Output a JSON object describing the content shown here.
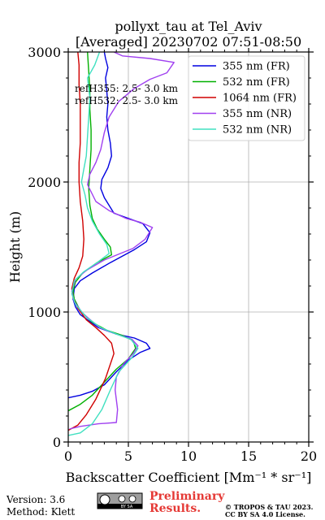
{
  "chart_data": {
    "type": "line",
    "title_line1": "pollyxt_tau at Tel_Aviv",
    "title_line2": "[Averaged] 20230702 07:51-08:50",
    "xlabel": "Backscatter Coefficient [Mm⁻¹ * sr⁻¹]",
    "ylabel": "Height (m)",
    "xlim": [
      0,
      20
    ],
    "ylim": [
      0,
      3000
    ],
    "xticks": [
      "0",
      "5",
      "10",
      "15",
      "20"
    ],
    "yticks": [
      "0",
      "1000",
      "2000",
      "3000"
    ],
    "grid": true,
    "legend_position": "top-right",
    "annotations": [
      "refH355:  2.5- 3.0 km",
      "refH532:  2.5- 3.0 km"
    ],
    "series": [
      {
        "name": "355 nm (FR)",
        "color": "#0000e0",
        "points": [
          [
            0,
            340
          ],
          [
            1,
            360
          ],
          [
            2,
            390
          ],
          [
            3,
            440
          ],
          [
            4,
            540
          ],
          [
            5,
            630
          ],
          [
            6,
            690
          ],
          [
            6.8,
            720
          ],
          [
            6.5,
            760
          ],
          [
            5.5,
            800
          ],
          [
            4,
            830
          ],
          [
            2.5,
            880
          ],
          [
            1,
            980
          ],
          [
            0.6,
            1040
          ],
          [
            0.4,
            1100
          ],
          [
            0.5,
            1180
          ],
          [
            1,
            1240
          ],
          [
            2,
            1300
          ],
          [
            3.5,
            1380
          ],
          [
            5.5,
            1480
          ],
          [
            6.5,
            1540
          ],
          [
            6.8,
            1610
          ],
          [
            6.2,
            1680
          ],
          [
            5,
            1720
          ],
          [
            3.8,
            1760
          ],
          [
            3,
            1880
          ],
          [
            2.7,
            1950
          ],
          [
            2.8,
            2020
          ],
          [
            3.3,
            2110
          ],
          [
            3.6,
            2200
          ],
          [
            3.5,
            2300
          ],
          [
            3.3,
            2400
          ],
          [
            3.2,
            2500
          ],
          [
            3.3,
            2600
          ],
          [
            3.2,
            2700
          ],
          [
            3.1,
            2800
          ],
          [
            3.3,
            2880
          ],
          [
            3.1,
            2950
          ],
          [
            3.0,
            3000
          ]
        ]
      },
      {
        "name": "532 nm (FR)",
        "color": "#00b000",
        "points": [
          [
            0,
            240
          ],
          [
            1,
            290
          ],
          [
            2,
            360
          ],
          [
            3,
            460
          ],
          [
            4,
            560
          ],
          [
            5,
            640
          ],
          [
            5.6,
            720
          ],
          [
            5.4,
            780
          ],
          [
            4.5,
            820
          ],
          [
            3.2,
            860
          ],
          [
            2,
            920
          ],
          [
            1,
            1010
          ],
          [
            0.5,
            1100
          ],
          [
            0.4,
            1160
          ],
          [
            0.6,
            1230
          ],
          [
            1.2,
            1300
          ],
          [
            2.4,
            1380
          ],
          [
            3.6,
            1440
          ],
          [
            3.5,
            1500
          ],
          [
            3,
            1560
          ],
          [
            2.4,
            1640
          ],
          [
            2,
            1720
          ],
          [
            1.8,
            1820
          ],
          [
            1.7,
            1950
          ],
          [
            1.8,
            2100
          ],
          [
            1.9,
            2250
          ],
          [
            1.9,
            2400
          ],
          [
            1.8,
            2560
          ],
          [
            1.8,
            2700
          ],
          [
            1.7,
            2850
          ],
          [
            1.6,
            3000
          ]
        ]
      },
      {
        "name": "1064 nm (FR)",
        "color": "#d00000",
        "points": [
          [
            0,
            90
          ],
          [
            0.8,
            130
          ],
          [
            1.5,
            210
          ],
          [
            2.3,
            330
          ],
          [
            3.1,
            490
          ],
          [
            3.8,
            680
          ],
          [
            3.6,
            760
          ],
          [
            3,
            820
          ],
          [
            2.3,
            880
          ],
          [
            1.5,
            940
          ],
          [
            0.8,
            1030
          ],
          [
            0.4,
            1110
          ],
          [
            0.3,
            1180
          ],
          [
            0.5,
            1260
          ],
          [
            0.9,
            1340
          ],
          [
            1.2,
            1430
          ],
          [
            1.3,
            1560
          ],
          [
            1.2,
            1700
          ],
          [
            1.0,
            1850
          ],
          [
            0.9,
            2000
          ],
          [
            0.9,
            2150
          ],
          [
            1.0,
            2300
          ],
          [
            1.0,
            2450
          ],
          [
            1.0,
            2600
          ],
          [
            0.9,
            2750
          ],
          [
            0.9,
            2900
          ],
          [
            0.8,
            3000
          ]
        ]
      },
      {
        "name": "355 nm (NR)",
        "color": "#a040f0",
        "points": [
          [
            0.1,
            100
          ],
          [
            1,
            120
          ],
          [
            2.5,
            140
          ],
          [
            4,
            150
          ],
          [
            4.1,
            250
          ],
          [
            3.9,
            400
          ],
          [
            4,
            500
          ],
          [
            4.6,
            600
          ],
          [
            5.4,
            680
          ],
          [
            5.8,
            740
          ],
          [
            5.3,
            790
          ],
          [
            4,
            830
          ],
          [
            2.6,
            880
          ],
          [
            1.2,
            990
          ],
          [
            0.5,
            1080
          ],
          [
            0.3,
            1160
          ],
          [
            0.6,
            1250
          ],
          [
            1.5,
            1320
          ],
          [
            3,
            1400
          ],
          [
            5.4,
            1490
          ],
          [
            6.4,
            1560
          ],
          [
            7.0,
            1650
          ],
          [
            6.0,
            1690
          ],
          [
            4.8,
            1720
          ],
          [
            3.4,
            1780
          ],
          [
            2.3,
            1850
          ],
          [
            1.6,
            1980
          ],
          [
            1.8,
            2060
          ],
          [
            2.3,
            2150
          ],
          [
            2.7,
            2250
          ],
          [
            3,
            2380
          ],
          [
            3.4,
            2500
          ],
          [
            4.2,
            2620
          ],
          [
            5.5,
            2720
          ],
          [
            6.8,
            2790
          ],
          [
            8.2,
            2840
          ],
          [
            8.8,
            2920
          ],
          [
            6.8,
            2950
          ],
          [
            4.5,
            2970
          ],
          [
            3.8,
            3000
          ]
        ]
      },
      {
        "name": "532 nm (NR)",
        "color": "#40e0c0",
        "points": [
          [
            0,
            50
          ],
          [
            1,
            70
          ],
          [
            2,
            140
          ],
          [
            2.8,
            250
          ],
          [
            3.5,
            400
          ],
          [
            4.2,
            540
          ],
          [
            5.3,
            650
          ],
          [
            5.8,
            720
          ],
          [
            5.2,
            790
          ],
          [
            4,
            830
          ],
          [
            2.7,
            880
          ],
          [
            1.5,
            960
          ],
          [
            0.6,
            1060
          ],
          [
            0.3,
            1140
          ],
          [
            0.5,
            1240
          ],
          [
            1.3,
            1310
          ],
          [
            2.4,
            1380
          ],
          [
            3.4,
            1450
          ],
          [
            3.2,
            1520
          ],
          [
            2.6,
            1600
          ],
          [
            2.0,
            1700
          ],
          [
            1.6,
            1800
          ],
          [
            1.4,
            1900
          ],
          [
            1.1,
            2000
          ],
          [
            1.3,
            2100
          ],
          [
            1.5,
            2200
          ],
          [
            1.6,
            2350
          ],
          [
            1.7,
            2500
          ],
          [
            1.8,
            2650
          ],
          [
            1.6,
            2800
          ],
          [
            2.2,
            2900
          ],
          [
            2.6,
            3000
          ]
        ]
      }
    ]
  },
  "footer": {
    "version": "Version: 3.6",
    "method": "Method: Klett",
    "prelim_line1": "Preliminary",
    "prelim_line2": "Results.",
    "copyright_line1": "© TROPOS & TAU 2023.",
    "copyright_line2": "CC BY SA 4.0 License.",
    "license_badge": "BY SA"
  }
}
